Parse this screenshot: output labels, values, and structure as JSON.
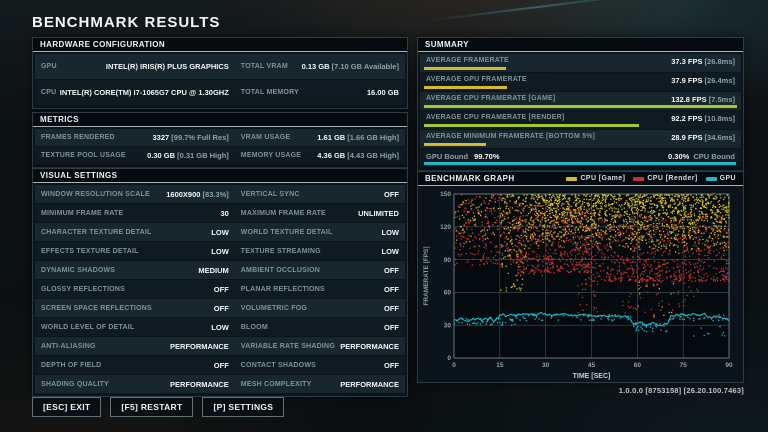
{
  "title": "BENCHMARK RESULTS",
  "version": "1.0.0.0 [8753158] [26.20.100.7463]",
  "colors": {
    "yellow": "#d7bb2f",
    "green": "#a4c82e",
    "red": "#c23434",
    "cyan": "#23b7c8"
  },
  "hardware": {
    "header": "HARDWARE CONFIGURATION",
    "rows": [
      [
        {
          "label": "GPU",
          "value": "INTEL(R) IRIS(R) PLUS GRAPHICS",
          "sub": ""
        },
        {
          "label": "TOTAL VRAM",
          "value": "0.13 GB",
          "sub": " [7.10 GB Available]"
        }
      ],
      [
        {
          "label": "CPU",
          "value": "INTEL(R) CORE(TM) I7-1065G7 CPU @ 1.30GHZ",
          "sub": ""
        },
        {
          "label": "TOTAL MEMORY",
          "value": "16.00 GB",
          "sub": ""
        }
      ]
    ]
  },
  "metrics": {
    "header": "METRICS",
    "rows": [
      [
        {
          "label": "FRAMES RENDERED",
          "value": "3327",
          "sub": " [99.7% Full Res]"
        },
        {
          "label": "VRAM USAGE",
          "value": "1.61 GB",
          "sub": " [1.66 GB High]"
        }
      ],
      [
        {
          "label": "TEXTURE POOL USAGE",
          "value": "0.30 GB",
          "sub": " [0.31 GB High]"
        },
        {
          "label": "MEMORY USAGE",
          "value": "4.36 GB",
          "sub": " [4.43 GB High]"
        }
      ]
    ]
  },
  "visual_settings": {
    "header": "VISUAL SETTINGS",
    "rows": [
      [
        {
          "label": "WINDOW RESOLUTION SCALE",
          "value": "1600X900",
          "sub": " [83.3%]"
        },
        {
          "label": "VERTICAL SYNC",
          "value": "OFF",
          "sub": ""
        }
      ],
      [
        {
          "label": "MINIMUM FRAME RATE",
          "value": "30",
          "sub": ""
        },
        {
          "label": "MAXIMUM FRAME RATE",
          "value": "UNLIMITED",
          "sub": ""
        }
      ],
      [
        {
          "label": "CHARACTER TEXTURE DETAIL",
          "value": "LOW",
          "sub": ""
        },
        {
          "label": "WORLD TEXTURE DETAIL",
          "value": "LOW",
          "sub": ""
        }
      ],
      [
        {
          "label": "EFFECTS TEXTURE DETAIL",
          "value": "LOW",
          "sub": ""
        },
        {
          "label": "TEXTURE STREAMING",
          "value": "LOW",
          "sub": ""
        }
      ],
      [
        {
          "label": "DYNAMIC SHADOWS",
          "value": "MEDIUM",
          "sub": ""
        },
        {
          "label": "AMBIENT OCCLUSION",
          "value": "OFF",
          "sub": ""
        }
      ],
      [
        {
          "label": "GLOSSY REFLECTIONS",
          "value": "OFF",
          "sub": ""
        },
        {
          "label": "PLANAR REFLECTIONS",
          "value": "OFF",
          "sub": ""
        }
      ],
      [
        {
          "label": "SCREEN SPACE REFLECTIONS",
          "value": "OFF",
          "sub": ""
        },
        {
          "label": "VOLUMETRIC FOG",
          "value": "OFF",
          "sub": ""
        }
      ],
      [
        {
          "label": "WORLD LEVEL OF DETAIL",
          "value": "LOW",
          "sub": ""
        },
        {
          "label": "BLOOM",
          "value": "OFF",
          "sub": ""
        }
      ],
      [
        {
          "label": "ANTI-ALIASING",
          "value": "PERFORMANCE",
          "sub": ""
        },
        {
          "label": "VARIABLE RATE SHADING",
          "value": "PERFORMANCE",
          "sub": ""
        }
      ],
      [
        {
          "label": "DEPTH OF FIELD",
          "value": "OFF",
          "sub": ""
        },
        {
          "label": "CONTACT SHADOWS",
          "value": "OFF",
          "sub": ""
        }
      ],
      [
        {
          "label": "SHADING QUALITY",
          "value": "PERFORMANCE",
          "sub": ""
        },
        {
          "label": "MESH COMPLEXITY",
          "value": "PERFORMANCE",
          "sub": ""
        }
      ]
    ]
  },
  "summary": {
    "header": "SUMMARY",
    "rows": [
      {
        "label": "AVERAGE FRAMERATE",
        "value": "37.3 FPS",
        "sub": " [26.8ms]",
        "bar_pct": 28.1,
        "bar_color": "#d7bb2f"
      },
      {
        "label": "AVERAGE GPU FRAMERATE",
        "value": "37.9 FPS",
        "sub": " [26.4ms]",
        "bar_pct": 28.5,
        "bar_color": "#d7bb2f"
      },
      {
        "label": "AVERAGE CPU FRAMERATE [GAME]",
        "value": "132.8 FPS",
        "sub": " [7.5ms]",
        "bar_pct": 100,
        "bar_color": "#a4c82e"
      },
      {
        "label": "AVERAGE CPU FRAMERATE [RENDER]",
        "value": "92.2 FPS",
        "sub": " [10.8ms]",
        "bar_pct": 69.4,
        "bar_color": "#a4c82e"
      },
      {
        "label": "AVERAGE MINIMUM FRAMERATE [BOTTOM 5%]",
        "value": "28.9 FPS",
        "sub": " [34.6ms]",
        "bar_pct": 21.8,
        "bar_color": "#d7bb2f"
      }
    ],
    "bound_row": {
      "left_label": "GPU Bound",
      "left_value": "99.70%",
      "right_value": "0.30%",
      "right_label": "CPU Bound",
      "bar_pct": 99.7,
      "bar_color": "#23b7c8"
    }
  },
  "graph": {
    "header": "BENCHMARK GRAPH",
    "legend": [
      {
        "label": "CPU [Game]",
        "color": "#d7bb2f"
      },
      {
        "label": "CPU [Render]",
        "color": "#c23434"
      },
      {
        "label": "GPU",
        "color": "#23b7c8"
      }
    ]
  },
  "footer": {
    "buttons": [
      {
        "name": "exit-button",
        "label": "[ESC] EXIT"
      },
      {
        "name": "restart-button",
        "label": "[F5] RESTART"
      },
      {
        "name": "settings-button",
        "label": "[P] SETTINGS"
      }
    ]
  },
  "chart_data": {
    "type": "scatter",
    "title": "BENCHMARK GRAPH",
    "xlabel": "TIME [SEC]",
    "ylabel": "FRAMERATE [FPS]",
    "xlim": [
      0,
      90
    ],
    "ylim": [
      0,
      150
    ],
    "xticks": [
      0,
      15,
      30,
      45,
      60,
      75,
      90
    ],
    "yticks": [
      0,
      30,
      60,
      90,
      120,
      150
    ],
    "grid": true,
    "legend_position": "top-right",
    "seed": 1337,
    "series": [
      {
        "name": "CPU [Game]",
        "color": "#d7bb2f",
        "kind": "scatter",
        "avg_fps": 132.8,
        "segments": [
          {
            "t": [
              0,
              15
            ],
            "fps": [
              105,
              150
            ],
            "count": 70,
            "bias": 0.8
          },
          {
            "t": [
              15,
              25
            ],
            "fps": [
              90,
              150
            ],
            "count": 150,
            "bias": 0.7
          },
          {
            "t": [
              15,
              23
            ],
            "fps": [
              60,
              100
            ],
            "count": 35,
            "bias": 1.0
          },
          {
            "t": [
              25,
              55
            ],
            "fps": [
              100,
              150
            ],
            "count": 700,
            "bias": 0.55
          },
          {
            "t": [
              55,
              90
            ],
            "fps": [
              95,
              150
            ],
            "count": 820,
            "bias": 0.55
          },
          {
            "t": [
              60,
              72
            ],
            "fps": [
              35,
              70
            ],
            "count": 14,
            "bias": 1.0
          }
        ]
      },
      {
        "name": "CPU [Render]",
        "color": "#c23434",
        "kind": "scatter",
        "avg_fps": 92.2,
        "segments": [
          {
            "t": [
              0,
              20
            ],
            "fps": [
              85,
              150
            ],
            "count": 240,
            "bias": 1.0
          },
          {
            "t": [
              20,
              30
            ],
            "fps": [
              75,
              142
            ],
            "count": 210,
            "bias": 1.1
          },
          {
            "t": [
              30,
              45
            ],
            "fps": [
              78,
              138
            ],
            "count": 340,
            "bias": 1.3
          },
          {
            "t": [
              45,
              90
            ],
            "fps": [
              70,
              132
            ],
            "count": 720,
            "bias": 1.4
          },
          {
            "t": [
              40,
              47
            ],
            "fps": [
              40,
              75
            ],
            "count": 30,
            "bias": 1.0
          },
          {
            "t": [
              55,
              72
            ],
            "fps": [
              38,
              75
            ],
            "count": 45,
            "bias": 1.0
          },
          {
            "t": [
              73,
              80
            ],
            "fps": [
              45,
              75
            ],
            "count": 16,
            "bias": 1.0
          }
        ]
      },
      {
        "name": "GPU",
        "color": "#23b7c8",
        "kind": "line",
        "avg_fps": 37.9,
        "points": [
          [
            0,
            36
          ],
          [
            1,
            34
          ],
          [
            2,
            37
          ],
          [
            3,
            35
          ],
          [
            4,
            33
          ],
          [
            5,
            34
          ],
          [
            6,
            36
          ],
          [
            7,
            35
          ],
          [
            8,
            36
          ],
          [
            9,
            34
          ],
          [
            10,
            36
          ],
          [
            11,
            35
          ],
          [
            12,
            37
          ],
          [
            13,
            33
          ],
          [
            14,
            36
          ],
          [
            15,
            39
          ],
          [
            16,
            40
          ],
          [
            17,
            38
          ],
          [
            18,
            40
          ],
          [
            19,
            40
          ],
          [
            20,
            39
          ],
          [
            22,
            40
          ],
          [
            24,
            40
          ],
          [
            26,
            40
          ],
          [
            27,
            38
          ],
          [
            28,
            41
          ],
          [
            30,
            40
          ],
          [
            32,
            39
          ],
          [
            34,
            40
          ],
          [
            36,
            40
          ],
          [
            38,
            39
          ],
          [
            40,
            39
          ],
          [
            42,
            40
          ],
          [
            44,
            39
          ],
          [
            46,
            38
          ],
          [
            48,
            39
          ],
          [
            50,
            38
          ],
          [
            52,
            39
          ],
          [
            54,
            38
          ],
          [
            56,
            38
          ],
          [
            57,
            37
          ],
          [
            58,
            34
          ],
          [
            59,
            31
          ],
          [
            60,
            32
          ],
          [
            61,
            33
          ],
          [
            62,
            31
          ],
          [
            63,
            29
          ],
          [
            64,
            31
          ],
          [
            65,
            32
          ],
          [
            66,
            31
          ],
          [
            67,
            30
          ],
          [
            68,
            29
          ],
          [
            69,
            31
          ],
          [
            70,
            32
          ],
          [
            71,
            38
          ],
          [
            72,
            39
          ],
          [
            74,
            40
          ],
          [
            76,
            39
          ],
          [
            78,
            40
          ],
          [
            80,
            39
          ],
          [
            82,
            40
          ],
          [
            83,
            38
          ],
          [
            84,
            37
          ],
          [
            86,
            38
          ],
          [
            88,
            37
          ],
          [
            89,
            36
          ],
          [
            90,
            35
          ]
        ],
        "segments": [
          {
            "t": [
              0,
              20
            ],
            "fps": [
              30,
              36
            ],
            "count": 45,
            "bias": 1.0
          },
          {
            "t": [
              20,
              58
            ],
            "fps": [
              34,
              40
            ],
            "count": 55,
            "bias": 1.0
          },
          {
            "t": [
              58,
              70
            ],
            "fps": [
              24,
              32
            ],
            "count": 30,
            "bias": 1.0
          },
          {
            "t": [
              70,
              90
            ],
            "fps": [
              34,
              40
            ],
            "count": 30,
            "bias": 1.0
          },
          {
            "t": [
              78,
              90
            ],
            "fps": [
              20,
              30
            ],
            "count": 9,
            "bias": 1.0
          }
        ]
      }
    ]
  }
}
